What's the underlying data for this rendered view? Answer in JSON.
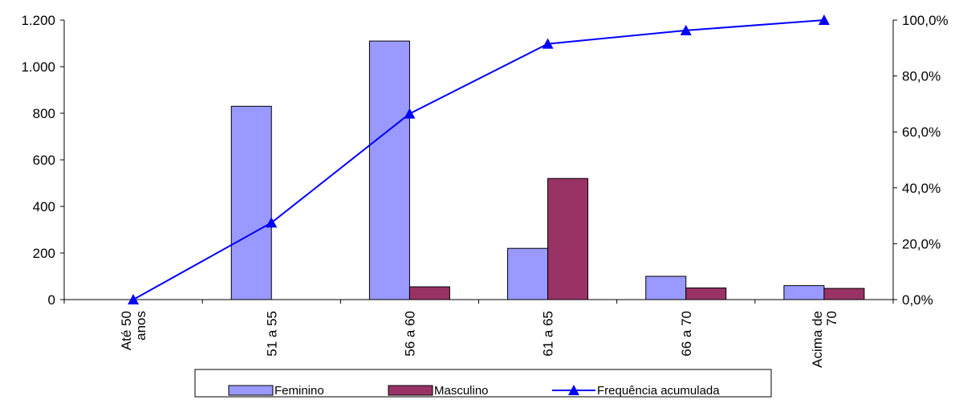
{
  "chart_data": {
    "type": "bar",
    "categories": [
      [
        "Até 50",
        "anos"
      ],
      [
        "51 a  55"
      ],
      [
        "56 a 60"
      ],
      [
        "61 a 65"
      ],
      [
        "66 a 70"
      ],
      [
        "Acima de",
        "70"
      ]
    ],
    "series": [
      {
        "name": "Feminino",
        "type": "bar",
        "axis": "left",
        "color": "#9999FF",
        "values": [
          0,
          830,
          1110,
          220,
          100,
          60
        ]
      },
      {
        "name": "Masculino",
        "type": "bar",
        "axis": "left",
        "color": "#993366",
        "values": [
          0,
          0,
          55,
          520,
          50,
          48
        ]
      },
      {
        "name": "Frequência acumulada",
        "type": "line",
        "axis": "right",
        "color": "#0000FF",
        "marker": "triangle",
        "values": [
          0.0,
          27.5,
          66.5,
          91.5,
          96.3,
          100.0
        ]
      }
    ],
    "y_left": {
      "ylim": [
        0,
        1200
      ],
      "ticks": [
        0,
        200,
        400,
        600,
        800,
        1000,
        1200
      ],
      "tick_labels": [
        "0",
        "200",
        "400",
        "600",
        "800",
        "1.000",
        "1.200"
      ]
    },
    "y_right": {
      "ylim": [
        0,
        100
      ],
      "ticks": [
        0,
        20,
        40,
        60,
        80,
        100
      ],
      "tick_labels": [
        "0,0%",
        "20,0%",
        "40,0%",
        "60,0%",
        "80,0%",
        "100,0%"
      ]
    },
    "title": "",
    "xlabel": "",
    "ylabel": "",
    "grid": false,
    "legend_position": "bottom"
  }
}
